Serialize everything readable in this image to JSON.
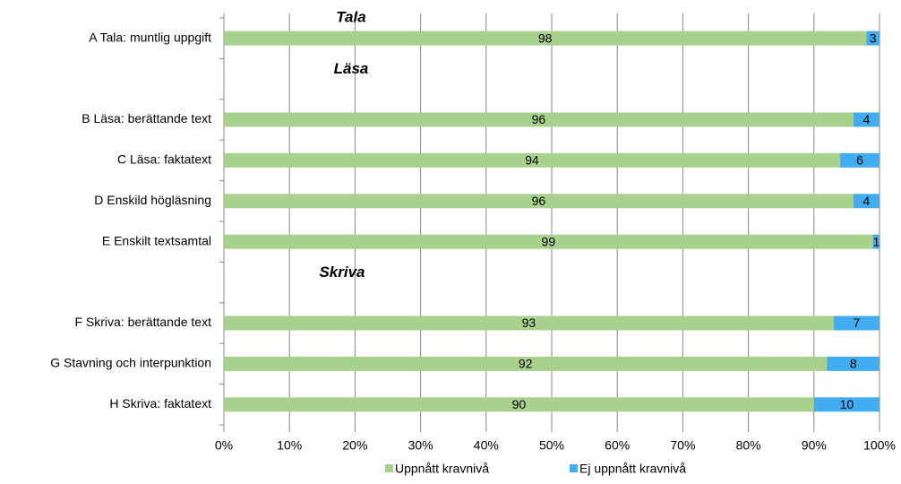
{
  "chart_data": {
    "type": "stacked-barh",
    "annotations": [
      "Tala",
      "Läsa",
      "Skriva"
    ],
    "categories": [
      "A Tala: muntlig uppgift",
      null,
      "B Läsa: berättande text",
      "C Läsa: faktatext",
      "D Enskild högläsning",
      "E Enskilt textsamtal",
      null,
      "F Skriva: berättande text",
      "G Stavning och interpunktion",
      "H Skriva: faktatext"
    ],
    "series": [
      {
        "name": "Uppnått kravnivå",
        "color": "#a9d18e",
        "values": [
          98,
          null,
          96,
          94,
          96,
          99,
          null,
          93,
          92,
          90
        ]
      },
      {
        "name": "Ej uppnått kravnivå",
        "color": "#41adf0",
        "values": [
          3,
          null,
          4,
          6,
          4,
          1,
          null,
          7,
          8,
          10
        ]
      }
    ],
    "xlim": [
      0,
      100
    ],
    "xticks": [
      {
        "value": 0,
        "label": "0%"
      },
      {
        "value": 10,
        "label": "10%"
      },
      {
        "value": 20,
        "label": "20%"
      },
      {
        "value": 30,
        "label": "30%"
      },
      {
        "value": 40,
        "label": "40%"
      },
      {
        "value": 50,
        "label": "50%"
      },
      {
        "value": 60,
        "label": "60%"
      },
      {
        "value": 70,
        "label": "70%"
      },
      {
        "value": 80,
        "label": "80%"
      },
      {
        "value": 90,
        "label": "90%"
      },
      {
        "value": 100,
        "label": "100%"
      }
    ],
    "grid": true,
    "legend": "bottom"
  }
}
